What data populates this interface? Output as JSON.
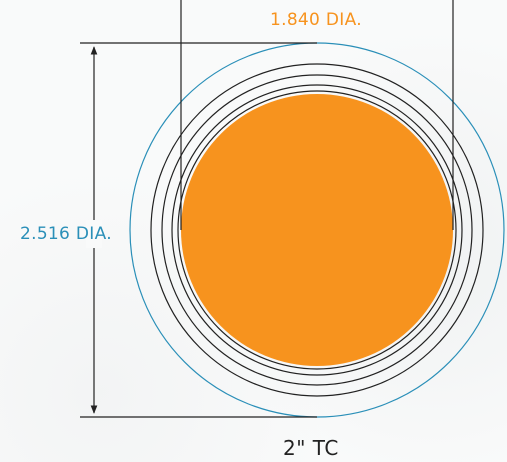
{
  "labels": {
    "inner_diameter": "1.840 DIA.",
    "outer_diameter": "2.516 DIA.",
    "part_name": "2\"  TC"
  },
  "colors": {
    "inner_fill": "#f7931e",
    "inner_label": "#f7931e",
    "outer_circle": "#2a8fb8",
    "outer_label": "#2a8fb8",
    "lines": "#222222"
  }
}
